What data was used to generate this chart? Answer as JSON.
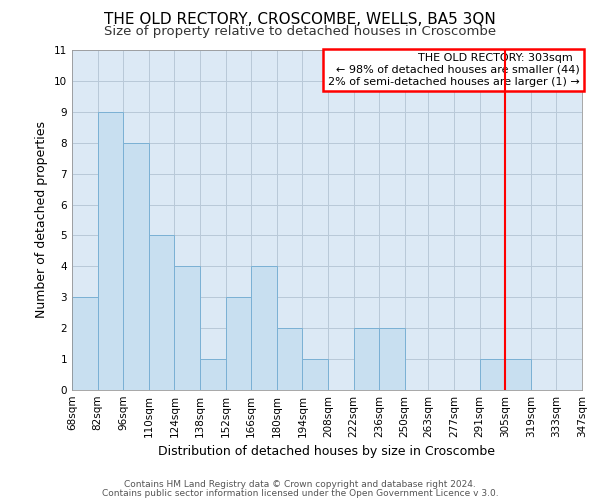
{
  "title": "THE OLD RECTORY, CROSCOMBE, WELLS, BA5 3QN",
  "subtitle": "Size of property relative to detached houses in Croscombe",
  "xlabel": "Distribution of detached houses by size in Croscombe",
  "ylabel": "Number of detached properties",
  "footer_line1": "Contains HM Land Registry data © Crown copyright and database right 2024.",
  "footer_line2": "Contains public sector information licensed under the Open Government Licence v 3.0.",
  "bin_edges": [
    68,
    82,
    96,
    110,
    124,
    138,
    152,
    166,
    180,
    194,
    208,
    222,
    236,
    250,
    263,
    277,
    291,
    305,
    319,
    333,
    347
  ],
  "bar_heights": [
    3,
    9,
    8,
    5,
    4,
    1,
    3,
    4,
    2,
    1,
    0,
    2,
    2,
    0,
    0,
    0,
    1,
    1,
    0,
    0
  ],
  "bar_color": "#c8dff0",
  "bar_edge_color": "#7ab0d4",
  "red_line_x": 305,
  "ylim": [
    0,
    11
  ],
  "yticks": [
    0,
    1,
    2,
    3,
    4,
    5,
    6,
    7,
    8,
    9,
    10,
    11
  ],
  "annotation_title": "THE OLD RECTORY: 303sqm",
  "annotation_line1": "← 98% of detached houses are smaller (44)",
  "annotation_line2": "2% of semi-detached houses are larger (1) →",
  "bg_color": "#ffffff",
  "plot_bg_color": "#dce9f5",
  "grid_color": "#b8c8d8",
  "title_fontsize": 11,
  "subtitle_fontsize": 9.5,
  "axis_label_fontsize": 9,
  "tick_fontsize": 7.5,
  "annotation_fontsize": 8,
  "footer_fontsize": 6.5
}
